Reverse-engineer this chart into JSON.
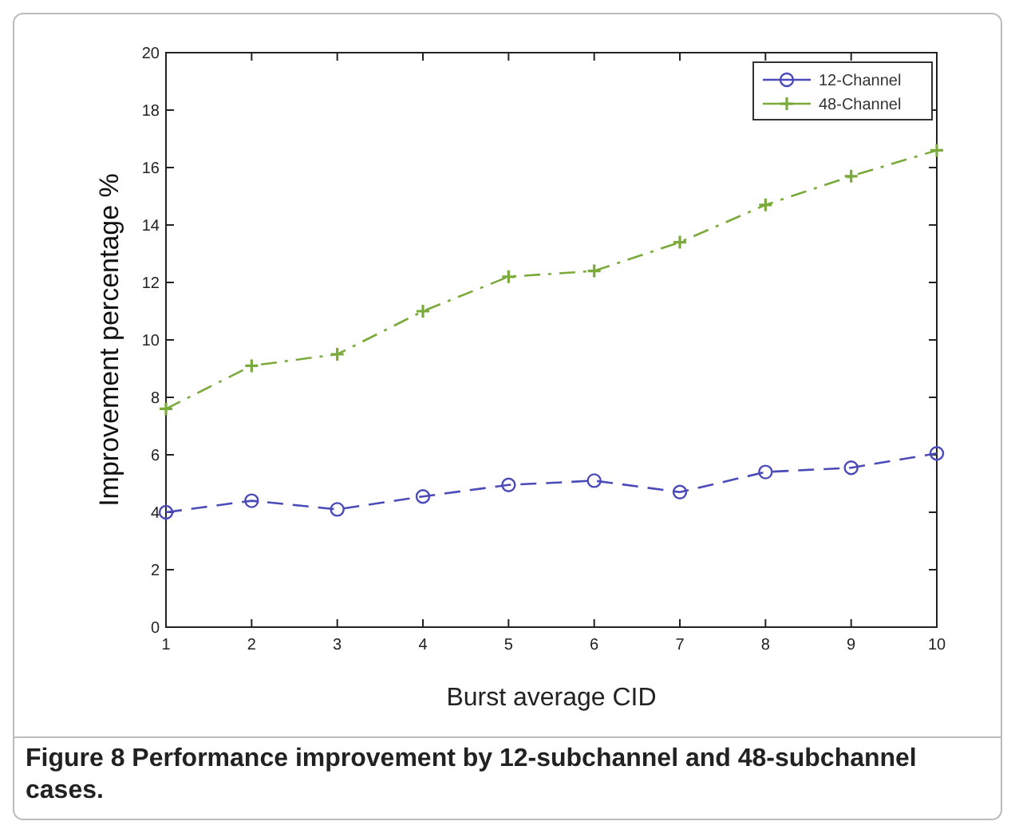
{
  "chart_data": {
    "type": "line",
    "xlabel": "Burst average CID",
    "ylabel": "Improvement percentage %",
    "annotations": [
      "Figure 8 Performance improvement by 12-subchannel and 48-subchannel cases."
    ],
    "x": [
      1,
      2,
      3,
      4,
      5,
      6,
      7,
      8,
      9,
      10
    ],
    "xlim": [
      1,
      10
    ],
    "xticks": [
      1,
      2,
      3,
      4,
      5,
      6,
      7,
      8,
      9,
      10
    ],
    "ylim": [
      0,
      20
    ],
    "yticks": [
      0,
      2,
      4,
      6,
      8,
      10,
      12,
      14,
      16,
      18,
      20
    ],
    "grid": false,
    "legend": "top right",
    "series": [
      {
        "name": "12-Channel",
        "color": "#4a4ab8",
        "marker": "circle",
        "line_style": "dashed",
        "values": [
          4.0,
          4.4,
          4.1,
          4.55,
          4.95,
          5.1,
          4.7,
          5.4,
          5.55,
          6.05
        ]
      },
      {
        "name": "48-Channel",
        "color": "#7aaa3a",
        "marker": "cross",
        "line_style": "dashdot",
        "values": [
          7.6,
          9.1,
          9.5,
          11.0,
          12.2,
          12.4,
          13.4,
          14.7,
          15.7,
          16.6
        ]
      }
    ]
  }
}
